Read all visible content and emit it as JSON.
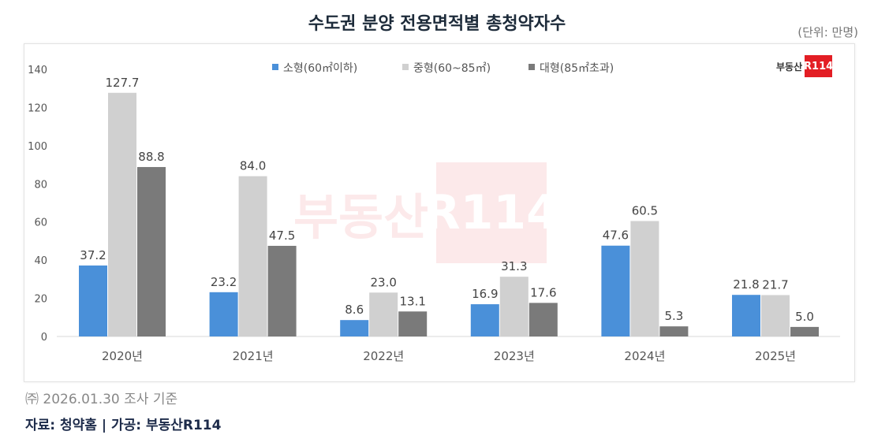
{
  "title": "수도권 분양 전용면적별 총청약자수",
  "unit": "(단위: 만명)",
  "note": "㈜ 2026.01.30 조사 기준",
  "source": "자료: 청약홈 | 가공: 부동산R114",
  "logo": {
    "text": "부동산",
    "badge": "R114"
  },
  "chart_data": {
    "type": "bar",
    "categories": [
      "2020년",
      "2021년",
      "2022년",
      "2023년",
      "2024년",
      "2025년"
    ],
    "series": [
      {
        "name": "소형(60㎡이하)",
        "color": "#4a90d9",
        "values": [
          37.2,
          23.2,
          8.6,
          16.9,
          47.6,
          21.8
        ]
      },
      {
        "name": "중형(60~85㎡)",
        "color": "#d0d0d0",
        "values": [
          127.7,
          84.0,
          23.0,
          31.3,
          60.5,
          21.7
        ]
      },
      {
        "name": "대형(85㎡초과)",
        "color": "#7a7a7a",
        "values": [
          88.8,
          47.5,
          13.1,
          17.6,
          5.3,
          5.0
        ]
      }
    ],
    "yticks": [
      0,
      20,
      40,
      60,
      80,
      100,
      120,
      140
    ],
    "ylim": [
      0,
      140
    ],
    "legend": "top-center",
    "grid": false
  }
}
